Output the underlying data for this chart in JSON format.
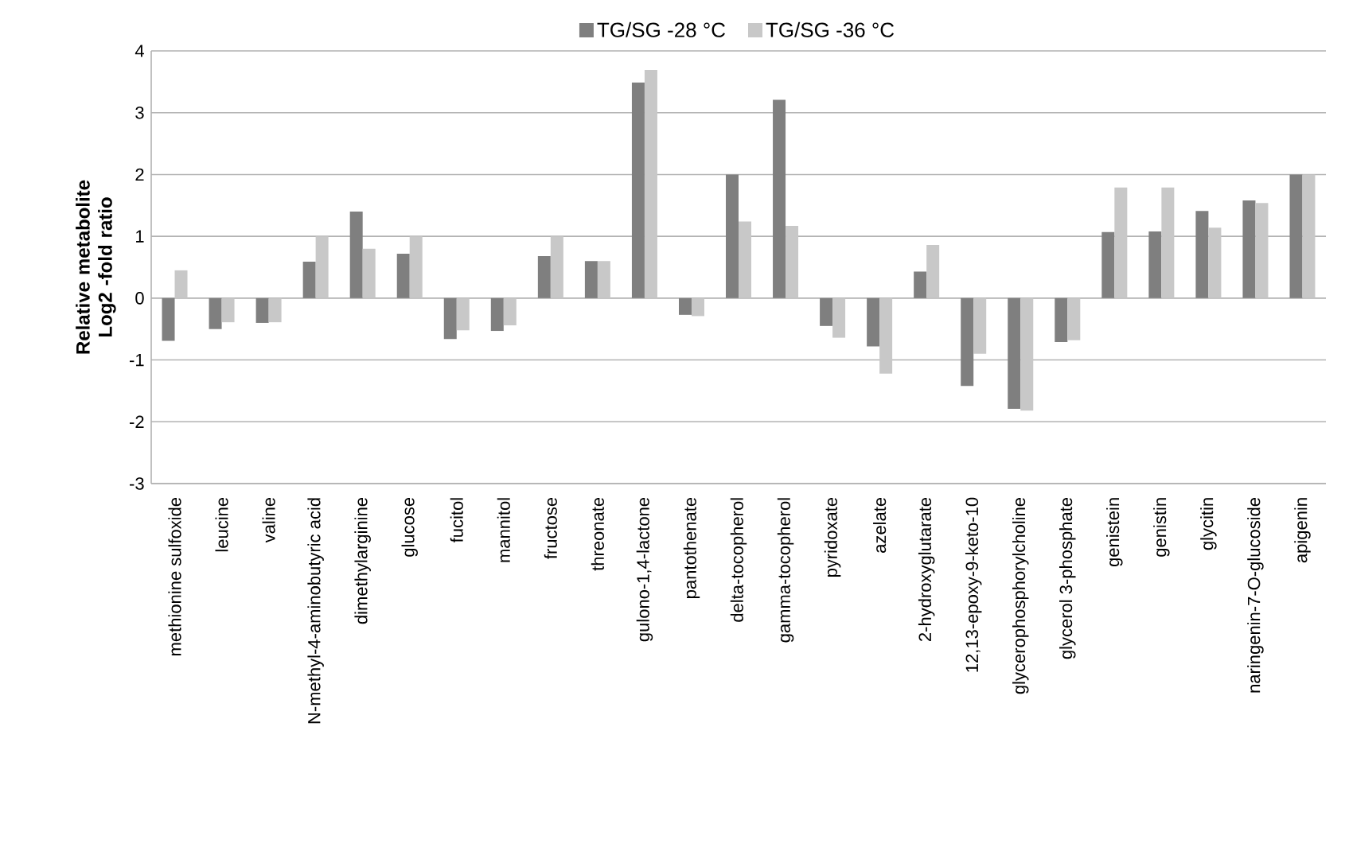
{
  "chart_data": {
    "type": "bar",
    "ylabel": "Relative metabolite Log2 -fold ratio",
    "categories": [
      "methionine sulfoxide",
      "leucine",
      "valine",
      "N-methyl-4-aminobutyric acid",
      "dimethylarginine",
      "glucose",
      "fucitol",
      "mannitol",
      "fructose",
      "threonate",
      "gulono-1,4-lactone",
      "pantothenate",
      "delta-tocopherol",
      "gamma-tocopherol",
      "pyridoxate",
      "azelate",
      "2-hydroxyglutarate",
      "12,13-epoxy-9-keto-10",
      "glycerophosphorylcholine",
      "glycerol 3-phosphate",
      "genistein",
      "genistin",
      "glycitin",
      "naringenin-7-O-glucoside",
      "apigenin"
    ],
    "series": [
      {
        "name": "TG/SG -28 °C",
        "color": "#7f7f7f",
        "values": [
          -0.69,
          -0.5,
          -0.4,
          0.59,
          1.4,
          0.72,
          -0.66,
          -0.53,
          0.68,
          0.6,
          3.49,
          -0.27,
          2.0,
          3.21,
          -0.45,
          -0.78,
          0.43,
          -1.42,
          -1.79,
          -0.71,
          1.07,
          1.08,
          1.41,
          1.58,
          2.0
        ]
      },
      {
        "name": "TG/SG -36 °C",
        "color": "#c8c8c8",
        "values": [
          0.45,
          -0.39,
          -0.39,
          1.0,
          0.8,
          1.0,
          -0.52,
          -0.44,
          1.0,
          0.6,
          3.69,
          -0.29,
          1.24,
          1.17,
          -0.64,
          -1.22,
          0.86,
          -0.9,
          -1.82,
          -0.68,
          1.79,
          1.79,
          1.14,
          1.54,
          2.0
        ]
      }
    ],
    "ylim": [
      -3,
      4
    ],
    "yticks": [
      -3,
      -2,
      -1,
      0,
      1,
      2,
      3,
      4
    ],
    "grid": "y",
    "legend": "top"
  }
}
